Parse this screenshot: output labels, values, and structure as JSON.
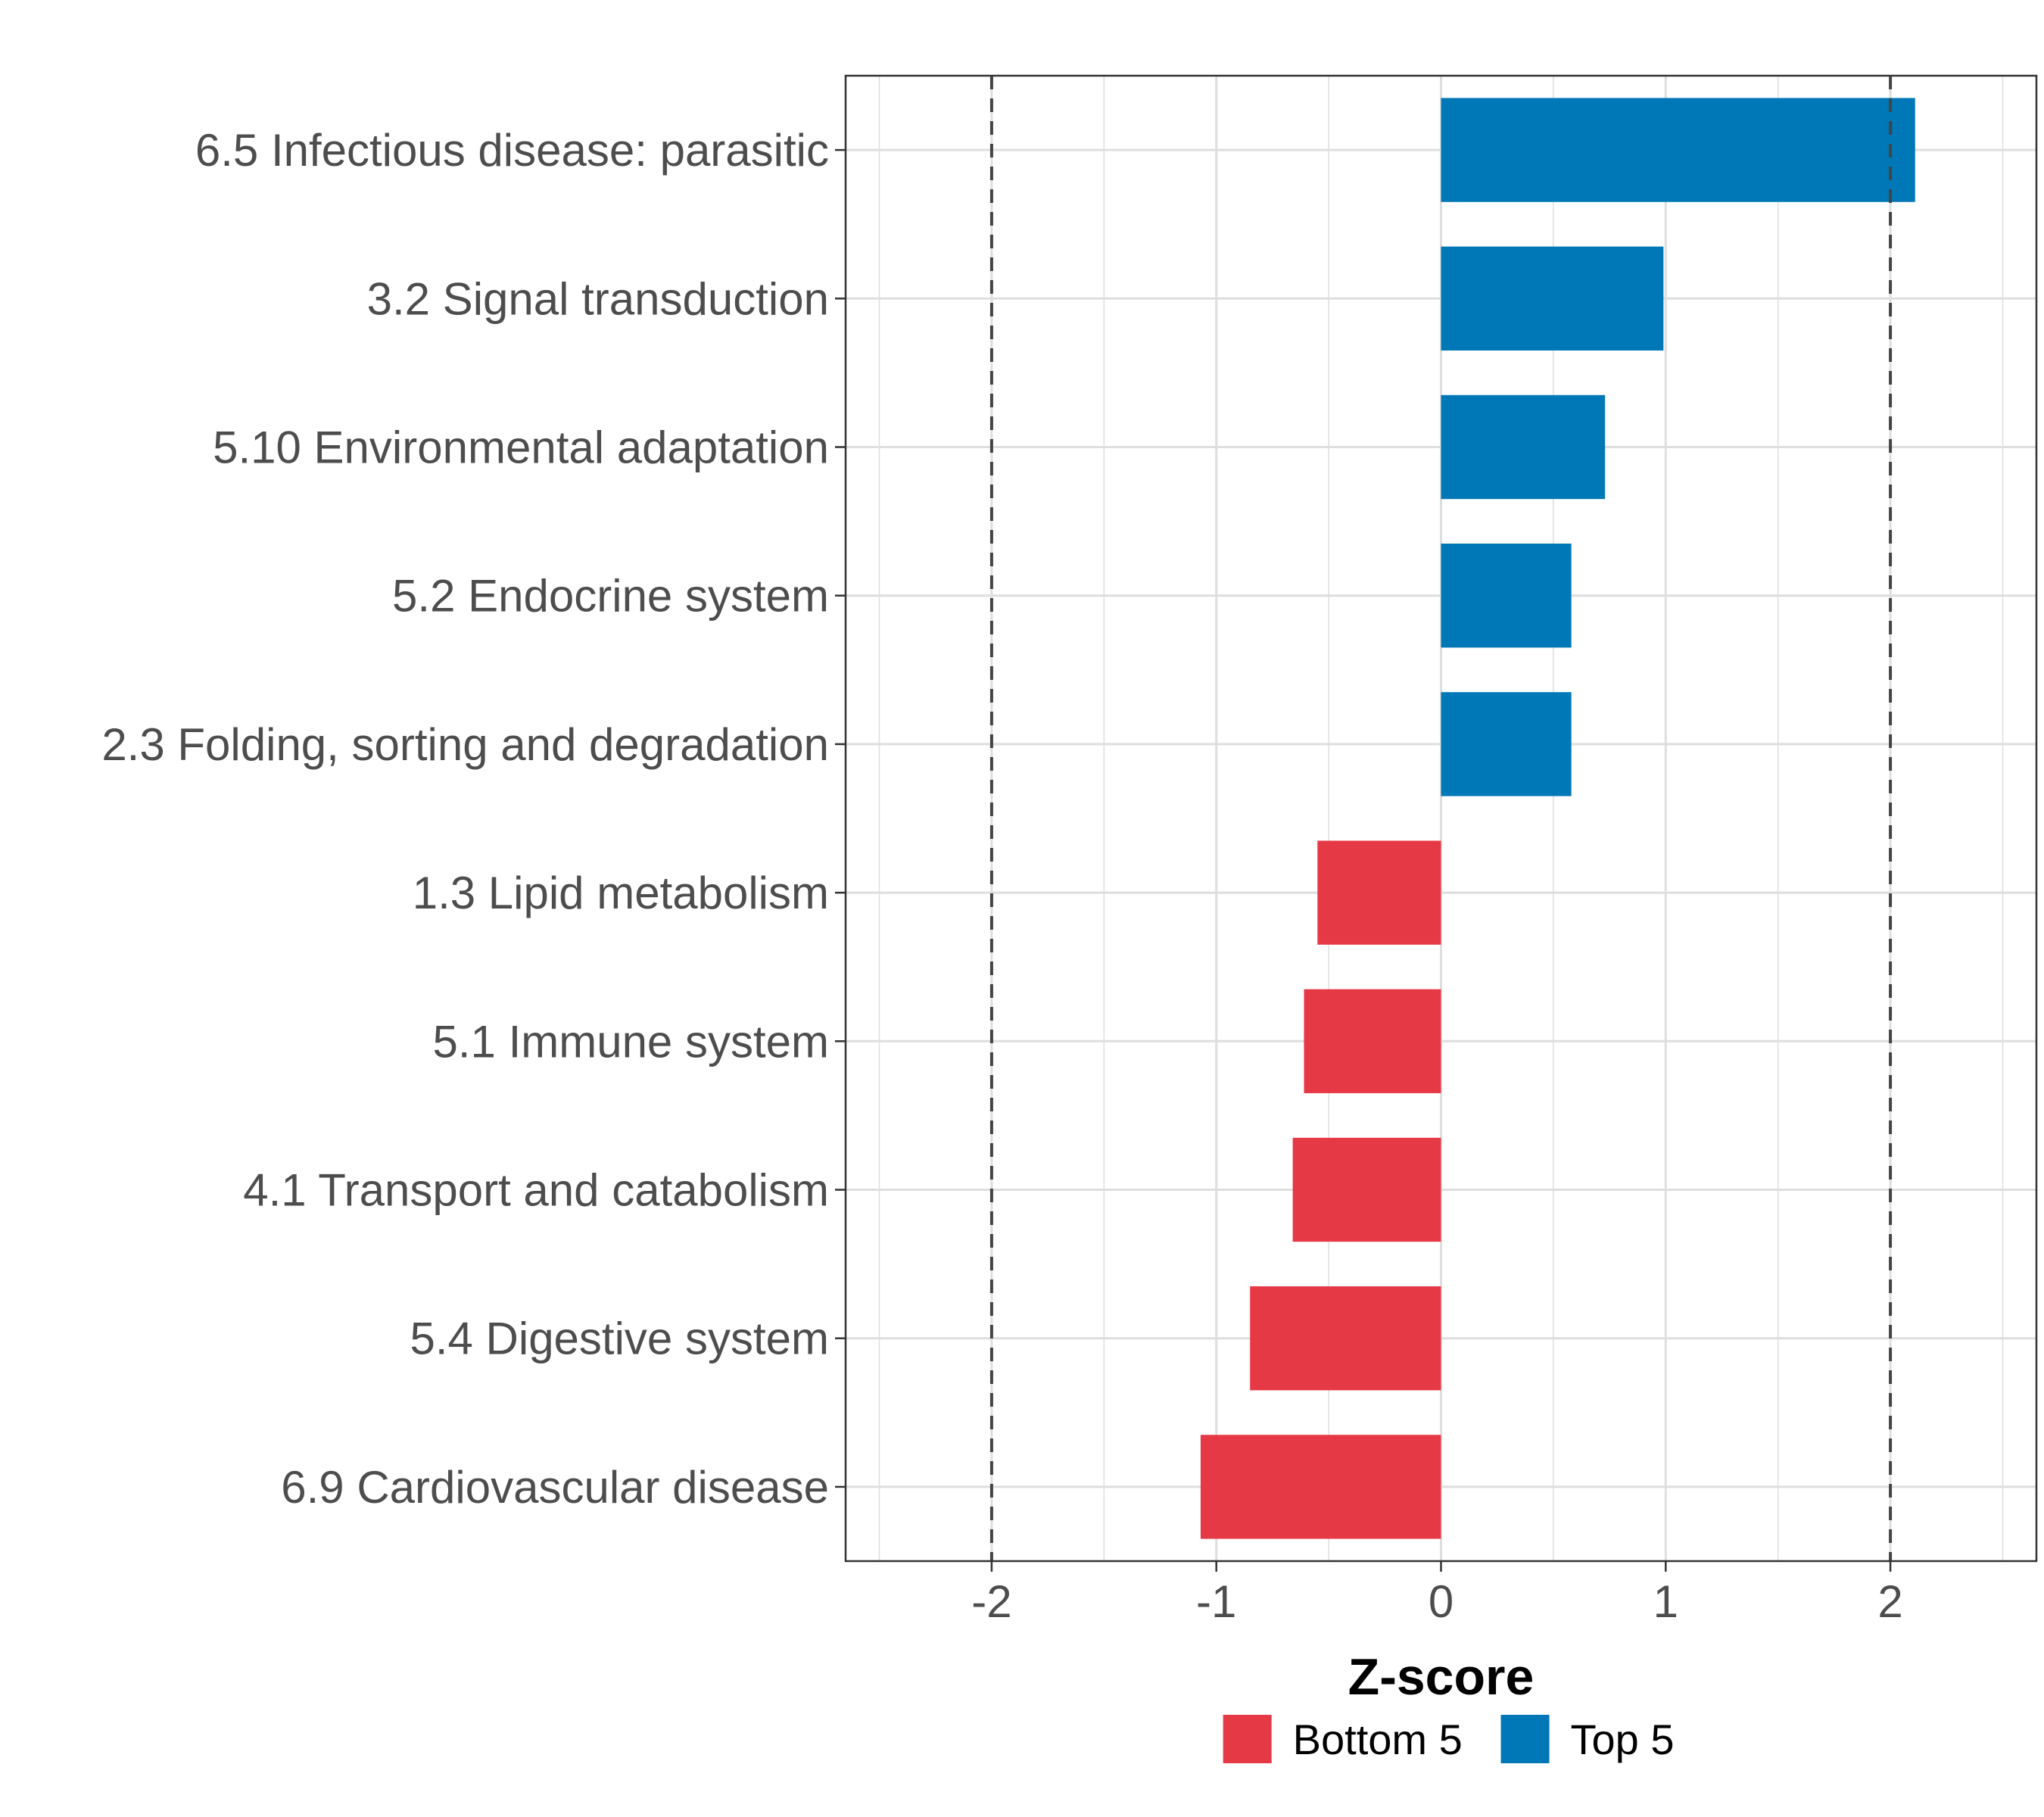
{
  "chart_data": {
    "type": "bar",
    "orientation": "horizontal",
    "categories": [
      "6.5 Infectious disease: parasitic",
      "3.2 Signal transduction",
      "5.10 Environmental adaptation",
      "5.2 Endocrine system",
      "2.3 Folding, sorting and degradation",
      "1.3 Lipid metabolism",
      "5.1 Immune system",
      "4.1 Transport and catabolism",
      "5.4 Digestive system",
      "6.9 Cardiovascular disease"
    ],
    "values": [
      2.11,
      0.99,
      0.73,
      0.58,
      0.58,
      -0.55,
      -0.61,
      -0.66,
      -0.85,
      -1.07
    ],
    "groups": [
      "Top 5",
      "Top 5",
      "Top 5",
      "Top 5",
      "Top 5",
      "Bottom 5",
      "Bottom 5",
      "Bottom 5",
      "Bottom 5",
      "Bottom 5"
    ],
    "xlabel": "Z-score",
    "ylabel": "",
    "xlim": [
      -2.65,
      2.65
    ],
    "xticks": [
      -2,
      -1,
      0,
      1,
      2
    ],
    "xtick_labels": [
      "-2",
      "-1",
      "0",
      "1",
      "2"
    ],
    "reference_lines": [
      -2,
      2
    ],
    "grid": true,
    "legend": {
      "placement": "bottom",
      "items": [
        {
          "label": "Bottom 5",
          "color": "#e63946"
        },
        {
          "label": "Top 5",
          "color": "#0077b6"
        }
      ]
    },
    "colors": {
      "Top 5": "#0077b6",
      "Bottom 5": "#e63946"
    }
  }
}
